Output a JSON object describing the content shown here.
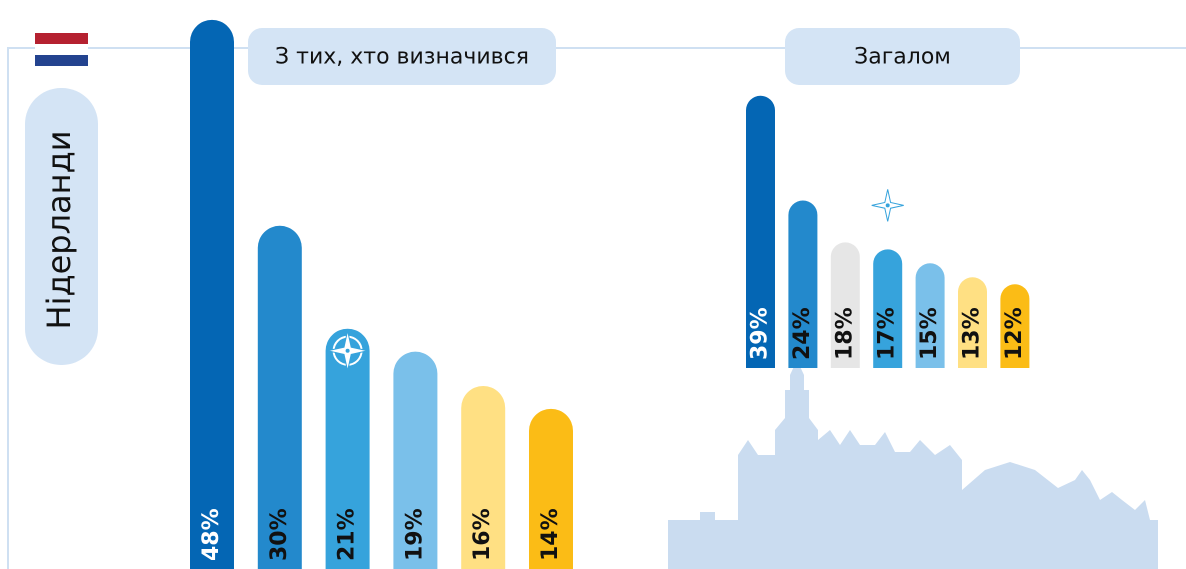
{
  "country": "Нідерланди",
  "chart_data": [
    {
      "type": "bar",
      "title": "З тих, хто визначився",
      "values": [
        48,
        30,
        21,
        19,
        16,
        14
      ],
      "value_labels": [
        "48%",
        "30%",
        "21%",
        "19%",
        "16%",
        "14%"
      ],
      "colors": [
        "#0466b4",
        "#2389cc",
        "#36a3dc",
        "#7ac0ea",
        "#ffe083",
        "#fbbc16"
      ]
    },
    {
      "type": "bar",
      "title": "Загалом",
      "values": [
        39,
        24,
        18,
        17,
        15,
        13,
        12
      ],
      "value_labels": [
        "39%",
        "24%",
        "18%",
        "17%",
        "15%",
        "13%",
        "12%"
      ],
      "colors": [
        "#0466b4",
        "#2389cc",
        "#e6e6e6",
        "#36a3dc",
        "#7ac0ea",
        "#ffe083",
        "#fbbc16"
      ]
    }
  ]
}
